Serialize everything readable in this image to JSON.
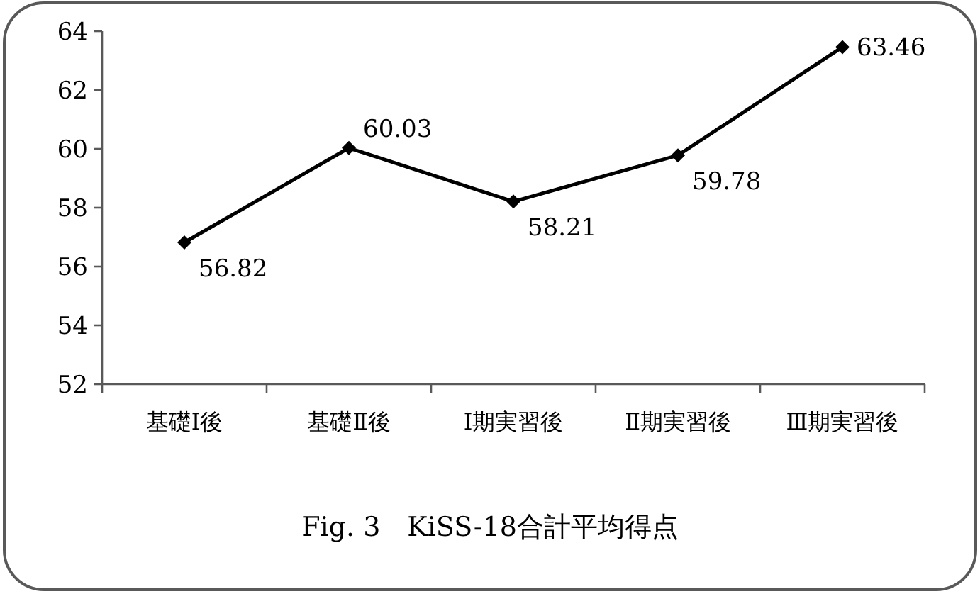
{
  "chart_data": {
    "type": "line",
    "title": "Fig. 3　KiSS-18合計平均得点",
    "categories": [
      "基礎Ⅰ後",
      "基礎Ⅱ後",
      "Ⅰ期実習後",
      "Ⅱ期実習後",
      "Ⅲ期実習後"
    ],
    "series": [
      {
        "color": "#000000",
        "values": [
          56.82,
          60.03,
          58.21,
          59.78,
          63.46
        ]
      }
    ],
    "ylim": [
      52,
      64
    ],
    "yticks": [
      52,
      54,
      56,
      58,
      60,
      62,
      64
    ],
    "data_labels": true,
    "marker": "diamond",
    "line_style": "solid"
  }
}
